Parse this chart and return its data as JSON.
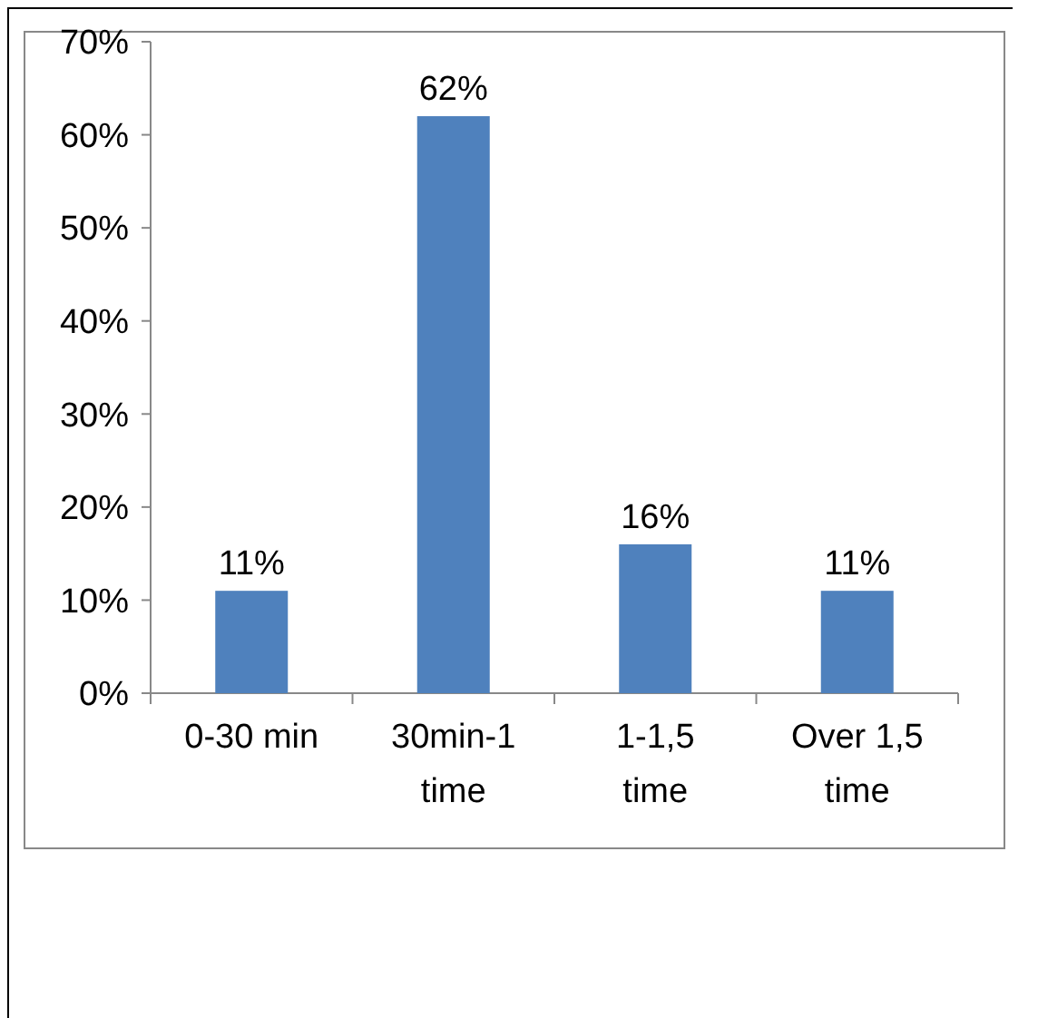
{
  "chart_data": {
    "type": "bar",
    "categories": [
      "0-30 min",
      "30min-1 time",
      "1-1,5 time",
      "Over 1,5 time"
    ],
    "values": [
      11,
      62,
      16,
      11
    ],
    "color": "#4f81bd",
    "value_labels": [
      "11%",
      "62%",
      "16%",
      "11%"
    ],
    "ylim": [
      0,
      70
    ],
    "yticks": [
      {
        "value": 0,
        "label": "0%"
      },
      {
        "value": 10,
        "label": "10%"
      },
      {
        "value": 20,
        "label": "20%"
      },
      {
        "value": 30,
        "label": "30%"
      },
      {
        "value": 40,
        "label": "40%"
      },
      {
        "value": 50,
        "label": "50%"
      },
      {
        "value": 60,
        "label": "60%"
      },
      {
        "value": 70,
        "label": "70%"
      }
    ],
    "grid": false
  }
}
